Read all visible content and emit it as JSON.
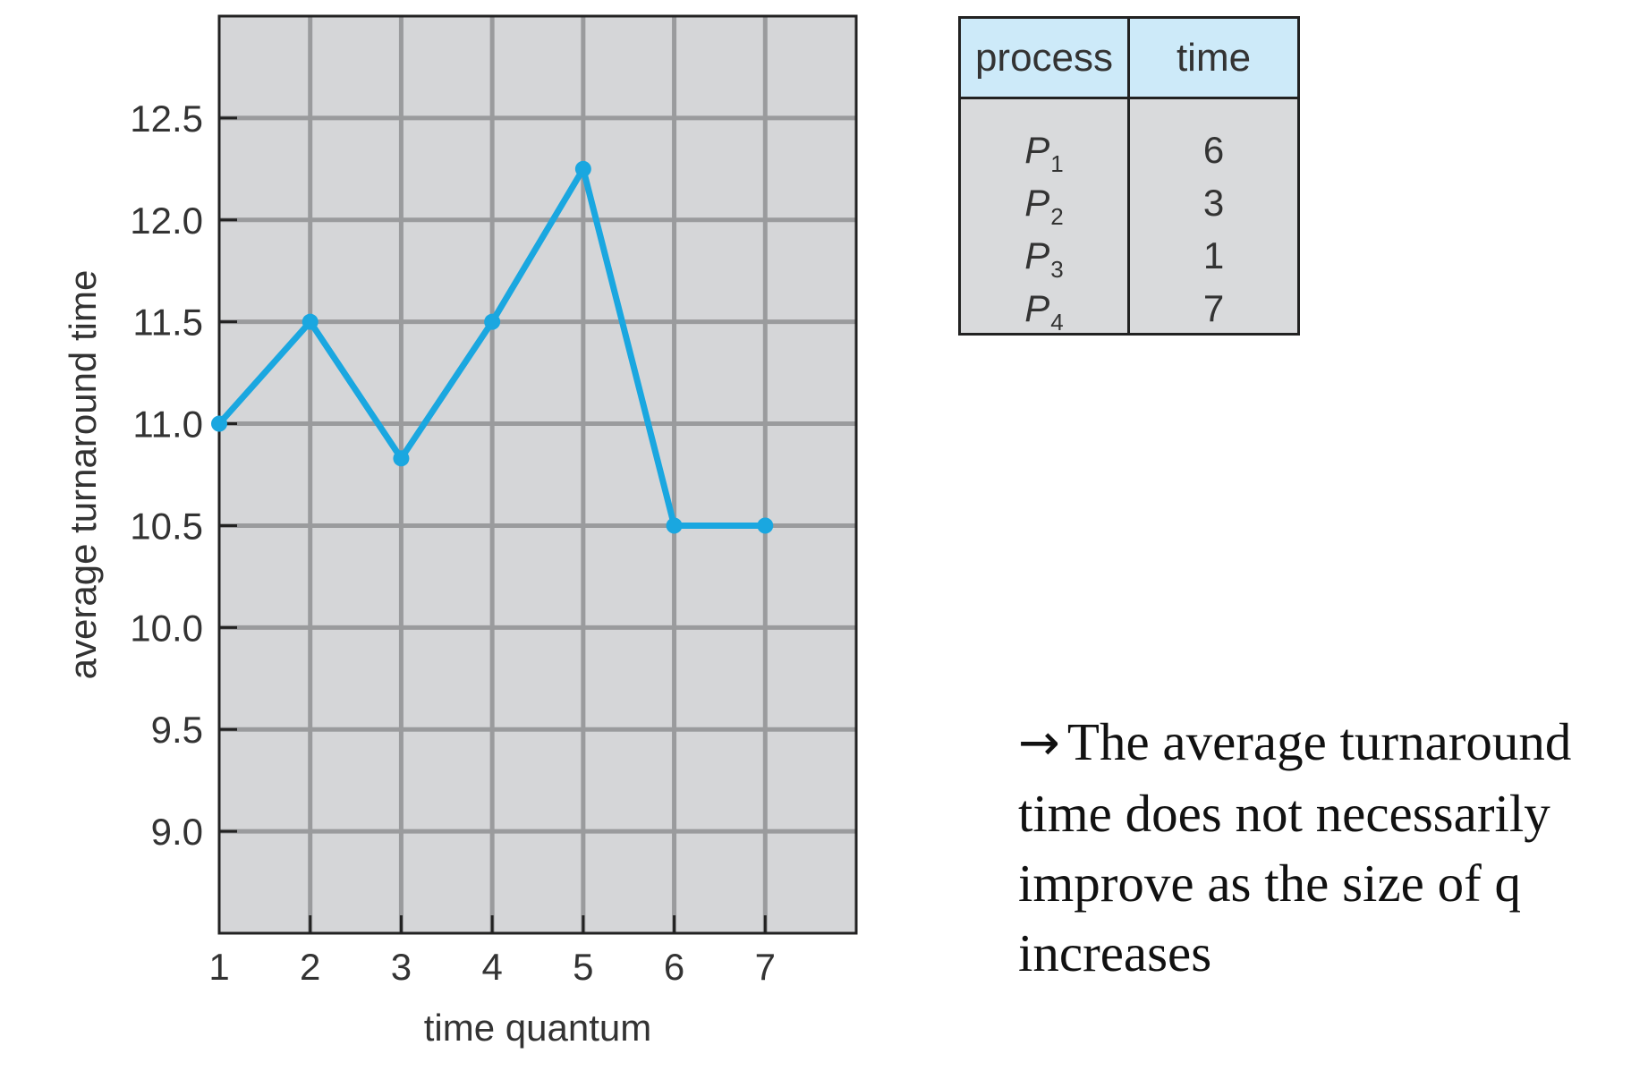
{
  "chart_data": {
    "type": "line",
    "title": "",
    "xlabel": "time quantum",
    "ylabel": "average turnaround time",
    "x": [
      1,
      2,
      3,
      4,
      5,
      6,
      7
    ],
    "series": [
      {
        "values": [
          11.0,
          11.5,
          10.83,
          11.5,
          12.25,
          10.5,
          10.5
        ]
      }
    ],
    "xticks": [
      "1",
      "2",
      "3",
      "4",
      "5",
      "6",
      "7"
    ],
    "yticks": [
      "9.0",
      "9.5",
      "10.0",
      "10.5",
      "11.0",
      "11.5",
      "12.0",
      "12.5"
    ],
    "xlim": [
      1,
      8
    ],
    "ylim": [
      8.5,
      13.0
    ],
    "grid": true,
    "colors": {
      "line": "#1aa7e0",
      "plot_background": "#d5d6d8",
      "grid": "#9a9b9d",
      "axis": "#222222",
      "table_header": "#cdeaf9"
    }
  },
  "table": {
    "headers": [
      "process",
      "time"
    ],
    "rows": [
      {
        "process": "P",
        "sub": "1",
        "time": "6"
      },
      {
        "process": "P",
        "sub": "2",
        "time": "3"
      },
      {
        "process": "P",
        "sub": "3",
        "time": "1"
      },
      {
        "process": "P",
        "sub": "4",
        "time": "7"
      }
    ]
  },
  "note": {
    "arrow": "→",
    "text": "The average turnaround time does not necessarily improve as the size of q increases"
  }
}
